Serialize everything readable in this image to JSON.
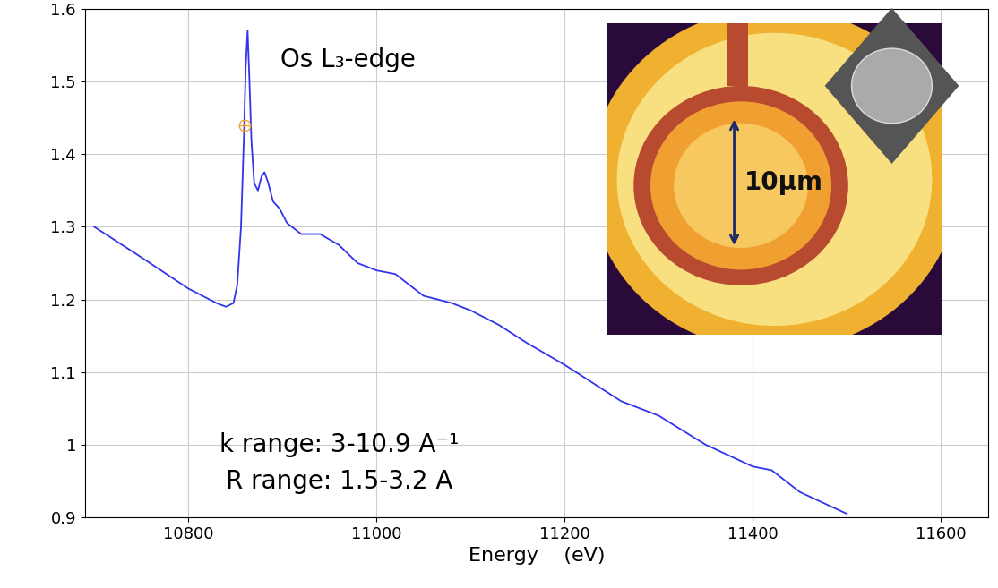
{
  "chart_data": {
    "type": "line",
    "xlabel": "Energy    (eV)",
    "x": [
      10700,
      10750,
      10800,
      10830,
      10840,
      10848,
      10852,
      10856,
      10859,
      10861,
      10863,
      10865,
      10867,
      10870,
      10874,
      10878,
      10881,
      10885,
      10890,
      10897,
      10905,
      10920,
      10940,
      10960,
      10980,
      11000,
      11020,
      11030,
      11050,
      11080,
      11100,
      11130,
      11160,
      11200,
      11230,
      11260,
      11300,
      11350,
      11400,
      11420,
      11450,
      11500
    ],
    "values": [
      1.3,
      1.258,
      1.215,
      1.195,
      1.19,
      1.195,
      1.22,
      1.3,
      1.42,
      1.52,
      1.57,
      1.5,
      1.42,
      1.36,
      1.35,
      1.37,
      1.375,
      1.36,
      1.335,
      1.325,
      1.305,
      1.29,
      1.29,
      1.275,
      1.25,
      1.24,
      1.235,
      1.225,
      1.205,
      1.195,
      1.185,
      1.165,
      1.14,
      1.11,
      1.085,
      1.06,
      1.04,
      1.0,
      0.97,
      0.965,
      0.935,
      0.905
    ],
    "color": "#3333ee",
    "marker_point": {
      "x": 10860,
      "y": 1.44,
      "color": "#f0a030"
    },
    "xlim": [
      10690,
      11650
    ],
    "xticks": [
      10800,
      11000,
      11200,
      11400,
      11600
    ],
    "ylim": [
      0.9,
      1.6
    ],
    "yticks": [
      0.9,
      1,
      1.1,
      1.2,
      1.3,
      1.4,
      1.5,
      1.6
    ],
    "grid": true,
    "annotations": [
      "Os L₃-edge",
      "k range: 3-10.9 A⁻¹",
      "R range: 1.5-3.2 A",
      "10μm"
    ]
  }
}
